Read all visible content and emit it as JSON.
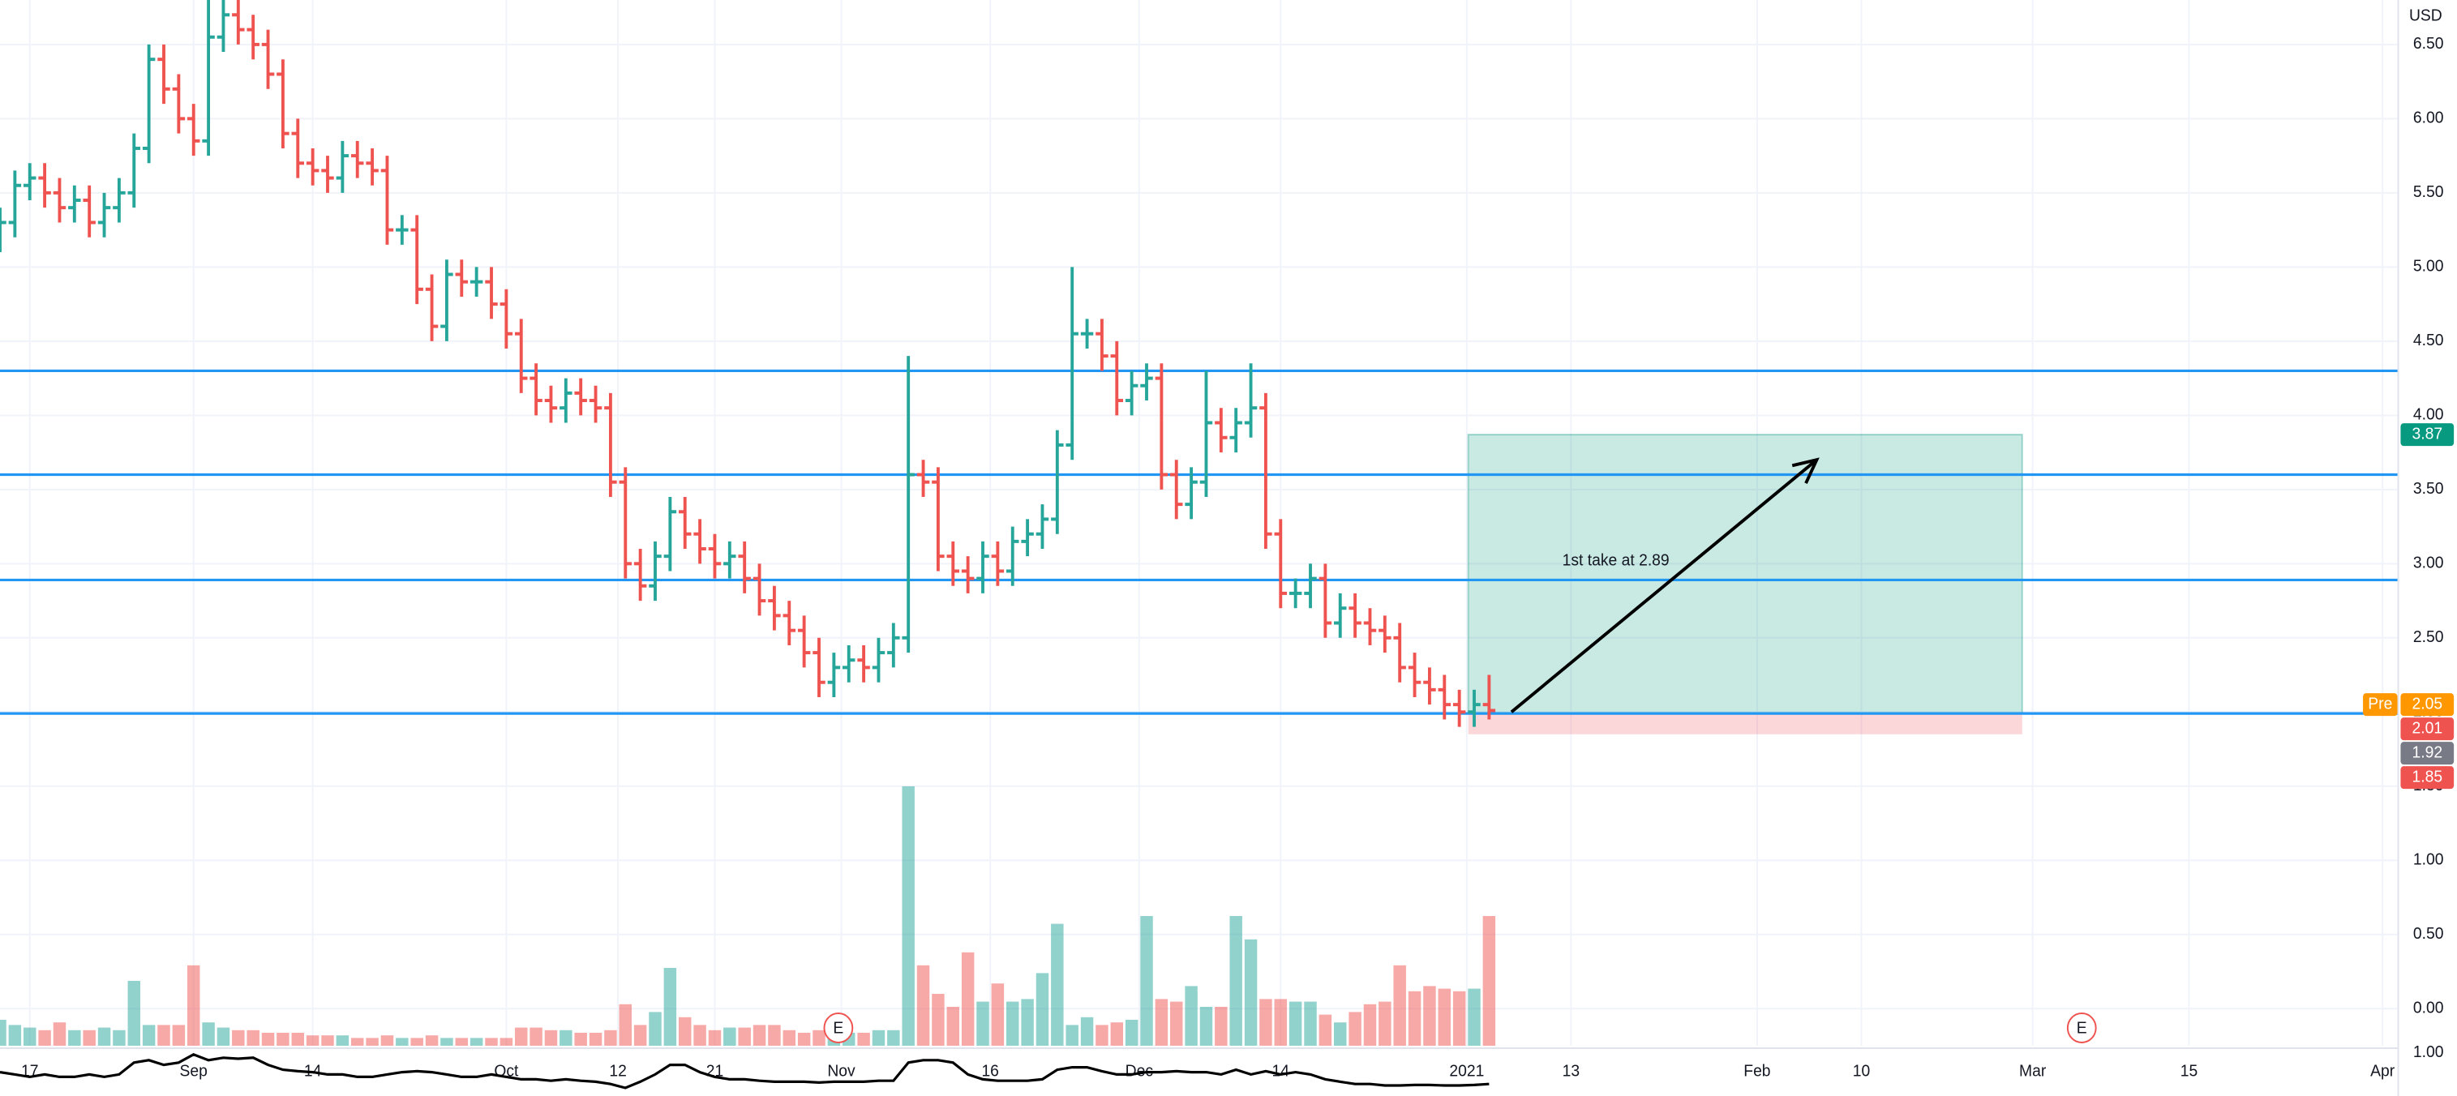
{
  "chart_data": {
    "type": "ohlc",
    "currency": "USD",
    "up_color": "#26a69a",
    "down_color": "#ef5350",
    "grid": true,
    "xlim": [
      0,
      161
    ],
    "xticks": [
      {
        "value": 2,
        "label": "17"
      },
      {
        "value": 13,
        "label": "Sep"
      },
      {
        "value": 21,
        "label": "14"
      },
      {
        "value": 34,
        "label": "Oct"
      },
      {
        "value": 41.5,
        "label": "12"
      },
      {
        "value": 48,
        "label": "21"
      },
      {
        "value": 56.5,
        "label": "Nov"
      },
      {
        "value": 66.5,
        "label": "16"
      },
      {
        "value": 76.5,
        "label": "Dec"
      },
      {
        "value": 86,
        "label": "14"
      },
      {
        "value": 98.5,
        "label": "2021"
      },
      {
        "value": 105.5,
        "label": "13"
      },
      {
        "value": 118,
        "label": "Feb"
      },
      {
        "value": 125,
        "label": "10"
      },
      {
        "value": 136.5,
        "label": "Mar"
      },
      {
        "value": 147,
        "label": "15"
      },
      {
        "value": 160,
        "label": "Apr"
      }
    ],
    "ylim": [
      -0.25,
      6.8
    ],
    "yticks": [
      {
        "value": 0,
        "label": "0.00"
      },
      {
        "value": 0.5,
        "label": "0.50"
      },
      {
        "value": 1,
        "label": "1.00"
      },
      {
        "value": 1.5,
        "label": "1.50"
      },
      {
        "value": 2,
        "label": "2.00"
      },
      {
        "value": 2.5,
        "label": "2.50"
      },
      {
        "value": 3,
        "label": "3.00"
      },
      {
        "value": 3.5,
        "label": "3.50"
      },
      {
        "value": 4,
        "label": "4.00"
      },
      {
        "value": 4.5,
        "label": "4.50"
      },
      {
        "value": 5,
        "label": "5.00"
      },
      {
        "value": 5.5,
        "label": "5.50"
      },
      {
        "value": 6,
        "label": "6.00"
      },
      {
        "value": 6.5,
        "label": "6.50"
      }
    ],
    "open": [
      5.2,
      5.3,
      5.55,
      5.6,
      5.5,
      5.4,
      5.45,
      5.3,
      5.4,
      5.5,
      5.8,
      6.4,
      6.2,
      6.0,
      5.85,
      6.55,
      6.7,
      6.6,
      6.5,
      6.3,
      5.9,
      5.7,
      5.65,
      5.6,
      5.75,
      5.7,
      5.65,
      5.25,
      5.25,
      4.85,
      4.6,
      4.95,
      4.9,
      4.9,
      4.75,
      4.55,
      4.25,
      4.1,
      4.05,
      4.15,
      4.1,
      4.05,
      3.55,
      3.0,
      2.85,
      3.05,
      3.35,
      3.2,
      3.1,
      3.0,
      3.05,
      2.9,
      2.75,
      2.65,
      2.55,
      2.4,
      2.2,
      2.3,
      2.35,
      2.3,
      2.4,
      2.5,
      3.6,
      3.55,
      3.05,
      2.95,
      2.9,
      3.05,
      2.95,
      3.15,
      3.2,
      3.3,
      3.8,
      4.55,
      4.55,
      4.4,
      4.1,
      4.2,
      4.25,
      3.6,
      3.4,
      3.55,
      3.95,
      3.85,
      3.95,
      4.05,
      3.2,
      2.8,
      2.8,
      2.9,
      2.6,
      2.7,
      2.6,
      2.55,
      2.5,
      2.3,
      2.2,
      2.15,
      2.05,
      2.0,
      2.05
    ],
    "high": [
      5.4,
      5.65,
      5.7,
      5.7,
      5.6,
      5.55,
      5.55,
      5.5,
      5.6,
      5.9,
      6.5,
      6.5,
      6.3,
      6.1,
      6.8,
      6.9,
      6.8,
      6.7,
      6.6,
      6.4,
      6.0,
      5.8,
      5.75,
      5.85,
      5.85,
      5.8,
      5.75,
      5.35,
      5.35,
      4.95,
      5.05,
      5.05,
      5.0,
      5.0,
      4.85,
      4.65,
      4.35,
      4.2,
      4.25,
      4.25,
      4.2,
      4.15,
      3.65,
      3.1,
      3.15,
      3.45,
      3.45,
      3.3,
      3.2,
      3.15,
      3.15,
      3.0,
      2.85,
      2.75,
      2.65,
      2.5,
      2.4,
      2.45,
      2.45,
      2.5,
      2.6,
      4.4,
      3.7,
      3.65,
      3.15,
      3.05,
      3.15,
      3.15,
      3.25,
      3.3,
      3.4,
      3.9,
      5.0,
      4.65,
      4.65,
      4.5,
      4.3,
      4.35,
      4.35,
      3.7,
      3.65,
      4.3,
      4.05,
      4.05,
      4.35,
      4.15,
      3.3,
      2.9,
      3.0,
      3.0,
      2.8,
      2.8,
      2.7,
      2.65,
      2.6,
      2.4,
      2.3,
      2.25,
      2.15,
      2.15,
      2.25
    ],
    "low": [
      5.1,
      5.2,
      5.45,
      5.4,
      5.3,
      5.3,
      5.2,
      5.2,
      5.3,
      5.4,
      5.7,
      6.1,
      5.9,
      5.75,
      5.75,
      6.45,
      6.5,
      6.4,
      6.2,
      5.8,
      5.6,
      5.55,
      5.5,
      5.5,
      5.6,
      5.55,
      5.15,
      5.15,
      4.75,
      4.5,
      4.5,
      4.8,
      4.8,
      4.65,
      4.45,
      4.15,
      4.0,
      3.95,
      3.95,
      4.0,
      3.95,
      3.45,
      2.9,
      2.75,
      2.75,
      2.95,
      3.1,
      3.0,
      2.9,
      2.9,
      2.8,
      2.65,
      2.55,
      2.45,
      2.3,
      2.1,
      2.1,
      2.2,
      2.2,
      2.2,
      2.3,
      2.4,
      3.45,
      2.95,
      2.85,
      2.8,
      2.8,
      2.85,
      2.85,
      3.05,
      3.1,
      3.2,
      3.7,
      4.45,
      4.3,
      4.0,
      4.0,
      4.1,
      3.5,
      3.3,
      3.3,
      3.45,
      3.75,
      3.75,
      3.85,
      3.1,
      2.7,
      2.7,
      2.7,
      2.5,
      2.5,
      2.5,
      2.45,
      2.4,
      2.2,
      2.1,
      2.05,
      1.95,
      1.9,
      1.9,
      1.95
    ],
    "close": [
      5.3,
      5.55,
      5.6,
      5.5,
      5.4,
      5.45,
      5.3,
      5.4,
      5.5,
      5.8,
      6.4,
      6.2,
      6.0,
      5.85,
      6.55,
      6.7,
      6.6,
      6.5,
      6.3,
      5.9,
      5.7,
      5.65,
      5.6,
      5.75,
      5.7,
      5.65,
      5.25,
      5.25,
      4.85,
      4.6,
      4.95,
      4.9,
      4.9,
      4.75,
      4.55,
      4.25,
      4.1,
      4.05,
      4.15,
      4.1,
      4.05,
      3.55,
      3.0,
      2.85,
      3.05,
      3.35,
      3.2,
      3.1,
      3.0,
      3.05,
      2.9,
      2.75,
      2.65,
      2.55,
      2.4,
      2.2,
      2.3,
      2.35,
      2.3,
      2.4,
      2.5,
      3.6,
      3.55,
      3.05,
      2.95,
      2.9,
      3.05,
      2.95,
      3.15,
      3.2,
      3.3,
      3.8,
      4.55,
      4.55,
      4.4,
      4.1,
      4.2,
      4.25,
      3.6,
      3.4,
      3.55,
      3.95,
      3.85,
      3.95,
      4.05,
      3.2,
      2.8,
      2.8,
      2.9,
      2.6,
      2.7,
      2.6,
      2.55,
      2.5,
      2.3,
      2.2,
      2.15,
      2.05,
      2.0,
      2.05,
      2.01
    ],
    "volume": [
      10,
      8,
      7,
      6,
      9,
      6,
      6,
      7,
      6,
      25,
      8,
      8,
      8,
      31,
      9,
      7,
      6,
      6,
      5,
      5,
      5,
      4,
      4,
      4,
      3,
      3,
      4,
      3,
      3,
      4,
      3,
      3,
      3,
      3,
      3,
      7,
      7,
      6,
      6,
      5,
      5,
      6,
      16,
      8,
      13,
      30,
      11,
      8,
      6,
      7,
      7,
      8,
      8,
      6,
      5,
      6,
      6,
      5,
      5,
      6,
      6,
      100,
      31,
      20,
      15,
      36,
      17,
      24,
      17,
      18,
      28,
      47,
      8,
      11,
      8,
      9,
      10,
      50,
      18,
      17,
      23,
      15,
      15,
      50,
      41,
      18,
      18,
      17,
      17,
      12,
      9,
      13,
      16,
      17,
      31,
      21,
      23,
      22,
      21,
      22,
      50
    ],
    "indicator": {
      "color": "#000000",
      "ylim": [
        0.1,
        1.05
      ],
      "yticks": [
        {
          "value": 1,
          "label": "1.00"
        }
      ],
      "values": [
        0.6,
        0.55,
        0.5,
        0.55,
        0.5,
        0.5,
        0.55,
        0.5,
        0.55,
        0.8,
        0.85,
        0.75,
        0.8,
        0.97,
        0.85,
        0.9,
        0.88,
        0.9,
        0.75,
        0.65,
        0.62,
        0.6,
        0.55,
        0.55,
        0.5,
        0.5,
        0.55,
        0.6,
        0.62,
        0.6,
        0.55,
        0.5,
        0.5,
        0.55,
        0.5,
        0.45,
        0.45,
        0.42,
        0.45,
        0.42,
        0.4,
        0.35,
        0.27,
        0.4,
        0.55,
        0.75,
        0.75,
        0.6,
        0.5,
        0.45,
        0.45,
        0.42,
        0.4,
        0.4,
        0.4,
        0.38,
        0.4,
        0.4,
        0.4,
        0.42,
        0.42,
        0.8,
        0.85,
        0.85,
        0.8,
        0.55,
        0.45,
        0.42,
        0.42,
        0.42,
        0.45,
        0.65,
        0.7,
        0.7,
        0.62,
        0.55,
        0.55,
        0.6,
        0.6,
        0.62,
        0.6,
        0.6,
        0.55,
        0.65,
        0.55,
        0.62,
        0.55,
        0.6,
        0.55,
        0.45,
        0.4,
        0.35,
        0.35,
        0.32,
        0.32,
        0.33,
        0.33,
        0.32,
        0.32,
        0.33,
        0.35
      ]
    },
    "hline_color": "#2196f3",
    "hlines": [
      4.3,
      3.6,
      2.89,
      1.99
    ],
    "position": {
      "start": 98.6,
      "end": 135.8,
      "target": 3.87,
      "entry": 1.99,
      "stop": 1.85
    },
    "arrow": {
      "from": [
        101.5,
        2.0
      ],
      "to": [
        122,
        3.7
      ]
    },
    "annotation": "1st take at 2.89",
    "earnings": [
      {
        "index": 56.3,
        "label": "E"
      },
      {
        "index": 139.8,
        "label": "E"
      }
    ],
    "price_tags": [
      {
        "value": 3.87,
        "label": "3.87",
        "color": "#089981"
      },
      {
        "value": 2.05,
        "label": "2.05",
        "prefix": "Pre",
        "color": "#ff9800"
      },
      {
        "value": 2.01,
        "label": "2.01",
        "color": "#ef5350"
      },
      {
        "value": 1.92,
        "label": "1.92",
        "color": "#787b86"
      },
      {
        "value": 1.85,
        "label": "1.85",
        "color": "#ef5350"
      }
    ]
  }
}
